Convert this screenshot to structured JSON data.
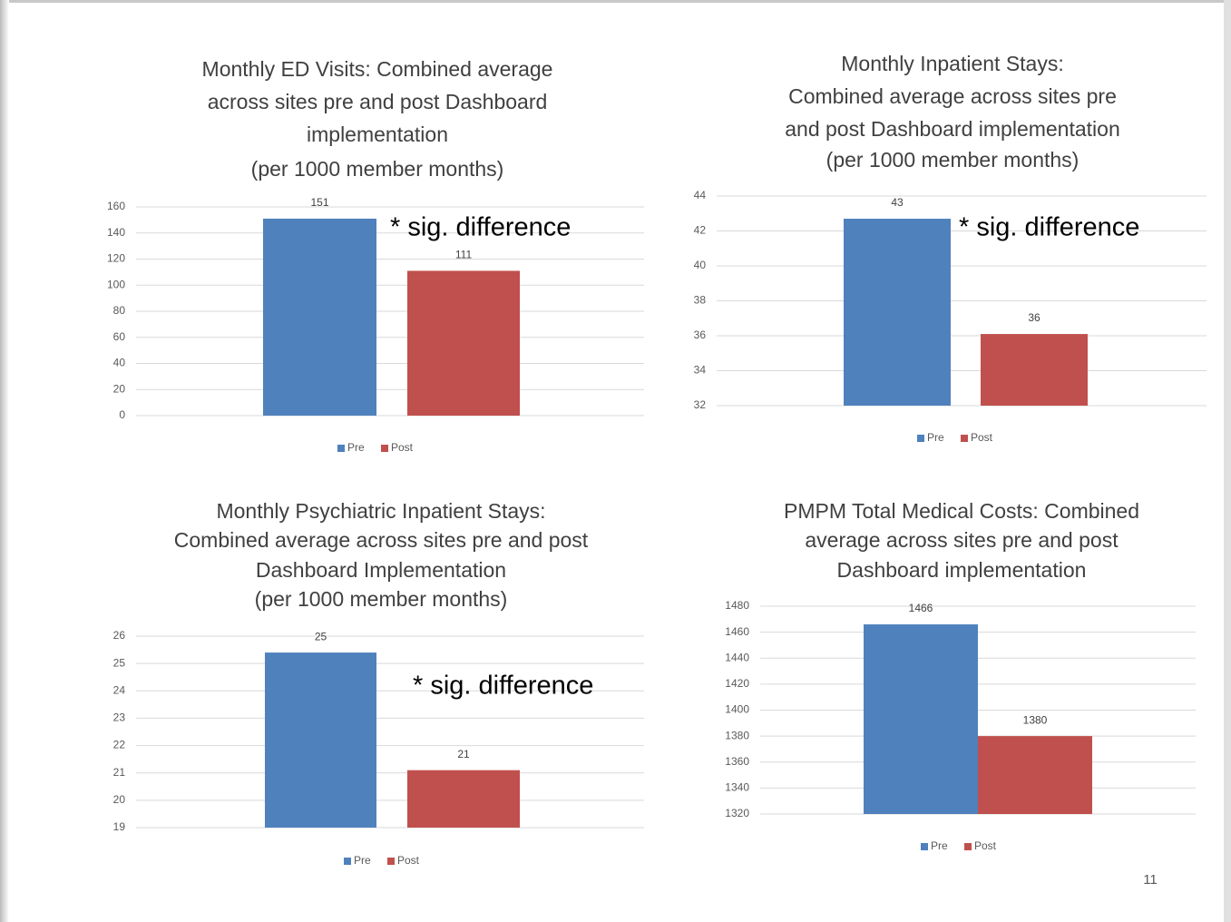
{
  "chart_data": [
    {
      "type": "bar",
      "title": [
        "Monthly ED Visits: Combined average",
        "across sites pre and post Dashboard",
        "implementation",
        "(per 1000 member  months)"
      ],
      "annotation": "* sig. difference",
      "categories": [
        null
      ],
      "series": [
        {
          "name": "Pre",
          "color": "#4f81bd",
          "values": [
            151
          ]
        },
        {
          "name": "Post",
          "color": "#c0504d",
          "values": [
            111
          ]
        }
      ],
      "ylim": [
        0,
        160
      ],
      "yticks": [
        0,
        20,
        40,
        60,
        80,
        100,
        120,
        140,
        160
      ],
      "grid": true,
      "legend": "bottom"
    },
    {
      "type": "bar",
      "title": [
        "Monthly Inpatient Stays:",
        "Combined  average across sites pre",
        "and post Dashboard implementation",
        "(per 1000 member months)"
      ],
      "annotation": "* sig. difference",
      "categories": [
        null
      ],
      "series": [
        {
          "name": "Pre",
          "color": "#4f81bd",
          "values": [
            42.7
          ],
          "value_labels": [
            "43"
          ]
        },
        {
          "name": "Post",
          "color": "#c0504d",
          "values": [
            36.1
          ],
          "value_labels": [
            "36"
          ]
        }
      ],
      "ylim": [
        32,
        44
      ],
      "yticks": [
        32,
        34,
        36,
        38,
        40,
        42,
        44
      ],
      "grid": true,
      "legend": "bottom"
    },
    {
      "type": "bar",
      "title": [
        "Monthly Psychiatric Inpatient Stays:",
        "Combined average across sites pre and post",
        "Dashboard Implementation",
        "(per 1000 member months)"
      ],
      "annotation": "* sig. difference",
      "categories": [
        null
      ],
      "series": [
        {
          "name": "Pre",
          "color": "#4f81bd",
          "values": [
            25.4
          ],
          "value_labels": [
            "25"
          ]
        },
        {
          "name": "Post",
          "color": "#c0504d",
          "values": [
            21.1
          ],
          "value_labels": [
            "21"
          ]
        }
      ],
      "ylim": [
        19,
        26
      ],
      "yticks": [
        19,
        20,
        21,
        22,
        23,
        24,
        25,
        26
      ],
      "grid": true,
      "legend": "bottom"
    },
    {
      "type": "bar",
      "title": [
        "PMPM Total Medical Costs: Combined",
        "average across sites pre and post",
        "Dashboard implementation"
      ],
      "categories": [
        null
      ],
      "series": [
        {
          "name": "Pre",
          "color": "#4f81bd",
          "values": [
            1466
          ]
        },
        {
          "name": "Post",
          "color": "#c0504d",
          "values": [
            1380
          ]
        }
      ],
      "ylim": [
        1320,
        1480
      ],
      "yticks": [
        1320,
        1340,
        1360,
        1380,
        1400,
        1420,
        1440,
        1460,
        1480
      ],
      "grid": true,
      "legend": "bottom"
    }
  ],
  "page_number": "11"
}
